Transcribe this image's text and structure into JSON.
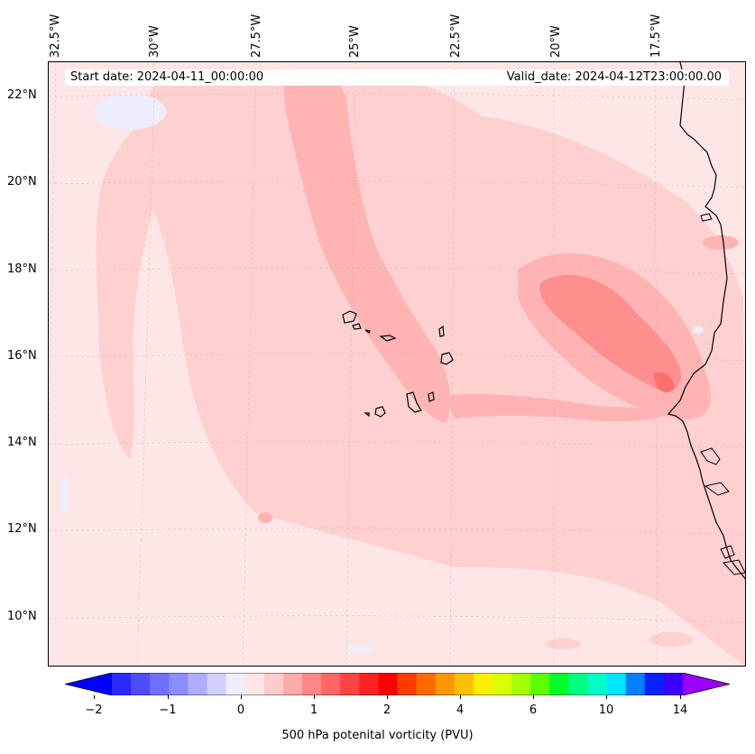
{
  "header": {
    "start_date": "Start date: 2024-04-11_00:00:00",
    "valid_date": "Valid_date: 2024-04-12T23:00:00.00"
  },
  "map": {
    "lon_labels": [
      "32.5°W",
      "30°W",
      "27.5°W",
      "25°W",
      "22.5°W",
      "20°W",
      "17.5°W"
    ],
    "lat_labels": [
      "22°N",
      "20°N",
      "18°N",
      "16°N",
      "14°N",
      "12°N",
      "10°N"
    ],
    "fill_colors": {
      "background": "#ffe6e6",
      "light": "#ffd0d0",
      "medium": "#ffb3b3",
      "strong": "#ff8f8f",
      "peak": "#ff6e6e",
      "negative": "#eeeeff",
      "coast": "#000000"
    }
  },
  "colorbar": {
    "label": "500 hPa potenital vorticity (PVU)",
    "ticks": [
      "−2",
      "−1",
      "0",
      "1",
      "2",
      "4",
      "6",
      "10",
      "14"
    ],
    "colors": [
      "#0000ff",
      "#2a2aff",
      "#4d4dff",
      "#6f6fff",
      "#8c8cff",
      "#aeaeff",
      "#d0d0ff",
      "#eeeeff",
      "#ffe6e6",
      "#ffcccc",
      "#ffaaaa",
      "#ff8888",
      "#ff6666",
      "#ff4444",
      "#ff2222",
      "#ff0000",
      "#ff3b00",
      "#ff6a00",
      "#ff9600",
      "#ffc000",
      "#ffee00",
      "#d9ff00",
      "#a5ff00",
      "#5cff00",
      "#00ff2a",
      "#00ff80",
      "#00ffc6",
      "#00e5ff",
      "#0080ff",
      "#0a20ff",
      "#3a00ff",
      "#9a00ff"
    ]
  }
}
